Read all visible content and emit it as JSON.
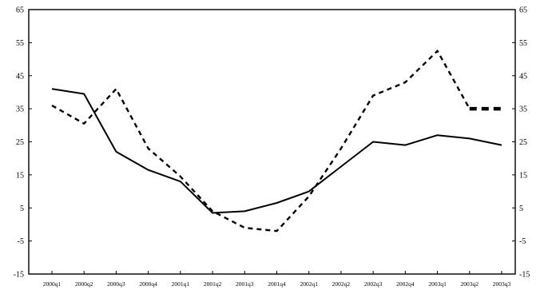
{
  "chart_data": {
    "type": "line",
    "title": "",
    "xlabel": "",
    "ylabel": "",
    "ylim": [
      -15,
      65
    ],
    "y_ticks": [
      65,
      55,
      45,
      35,
      25,
      15,
      5,
      -5,
      -15
    ],
    "y_ticks_display": [
      "65",
      "55",
      "45",
      "35",
      "25",
      "15",
      "5",
      "-5",
      "-15"
    ],
    "secondary_y_axis": true,
    "grid": false,
    "legend": "none",
    "categories": [
      "2000q1",
      "2000q2",
      "2000q3",
      "2000q4",
      "2001q1",
      "2001q2",
      "2001q3",
      "2001q4",
      "2002q1",
      "2002q2",
      "2002q3",
      "2002q4",
      "2003q1",
      "2003q2",
      "2003q3"
    ],
    "series": [
      {
        "style": "solid",
        "color": "#000000",
        "values": [
          41,
          39.5,
          22,
          16.5,
          13,
          3.5,
          4,
          6.5,
          10,
          17.5,
          25,
          24,
          27,
          26,
          24
        ]
      },
      {
        "style": "dashed",
        "color": "#000000",
        "values": [
          36,
          30.5,
          41,
          23,
          14.5,
          4,
          -1,
          -2,
          8.5,
          23,
          39,
          43,
          52.5,
          35,
          35
        ]
      }
    ]
  }
}
